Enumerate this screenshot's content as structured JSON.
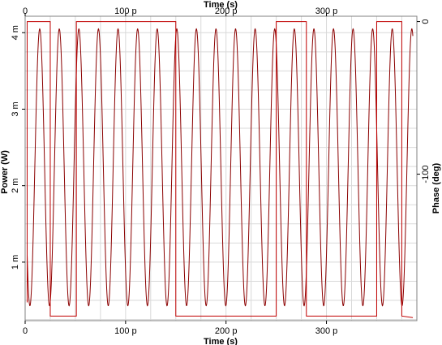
{
  "chart_data": {
    "type": "line",
    "xlabel": "Time (s)",
    "xlabel_top": "Time (s)",
    "ylabel": "Power (W)",
    "ylabel_right": "Phase (deg)",
    "xlim": [
      0,
      3.9e-10
    ],
    "ylim": [
      0.000235,
      0.004215
    ],
    "y2lim": [
      -196,
      3.5
    ],
    "x_ticks": [
      {
        "value": 0,
        "label": "0"
      },
      {
        "value": 1e-10,
        "label": "100 p"
      },
      {
        "value": 2e-10,
        "label": "200 p"
      },
      {
        "value": 3e-10,
        "label": "300 p"
      }
    ],
    "y_ticks": [
      {
        "value": 0.001,
        "label": "1 m"
      },
      {
        "value": 0.002,
        "label": "2 m"
      },
      {
        "value": 0.003,
        "label": "3 m"
      },
      {
        "value": 0.004,
        "label": "4 m"
      }
    ],
    "y2_ticks": [
      {
        "value": 0,
        "label": "0"
      },
      {
        "value": -100,
        "label": "-100"
      }
    ],
    "grid": true,
    "series": [
      {
        "axis": "left",
        "color": "#8b0000",
        "kind": "sinusoid",
        "min": 0.00043,
        "max": 0.00405,
        "period": 1.95e-11,
        "first_peak": 1.45e-11,
        "x_start": 2e-12,
        "x_end": 3.86e-10
      },
      {
        "axis": "right",
        "color": "#c00000",
        "kind": "step",
        "points": [
          [
            2e-12,
            -184
          ],
          [
            2e-12,
            0
          ],
          [
            2.5e-11,
            0
          ],
          [
            2.5e-11,
            -193
          ],
          [
            5.1e-11,
            -193
          ],
          [
            5.1e-11,
            0
          ],
          [
            1.5e-10,
            0
          ],
          [
            1.5e-10,
            -193
          ],
          [
            2.5e-10,
            -193
          ],
          [
            2.5e-10,
            0
          ],
          [
            2.8e-10,
            0
          ],
          [
            2.8e-10,
            -193
          ],
          [
            3.5e-10,
            -193
          ],
          [
            3.5e-10,
            0
          ],
          [
            3.75e-10,
            0
          ],
          [
            3.75e-10,
            -193
          ],
          [
            3.86e-10,
            -194
          ]
        ]
      }
    ]
  }
}
